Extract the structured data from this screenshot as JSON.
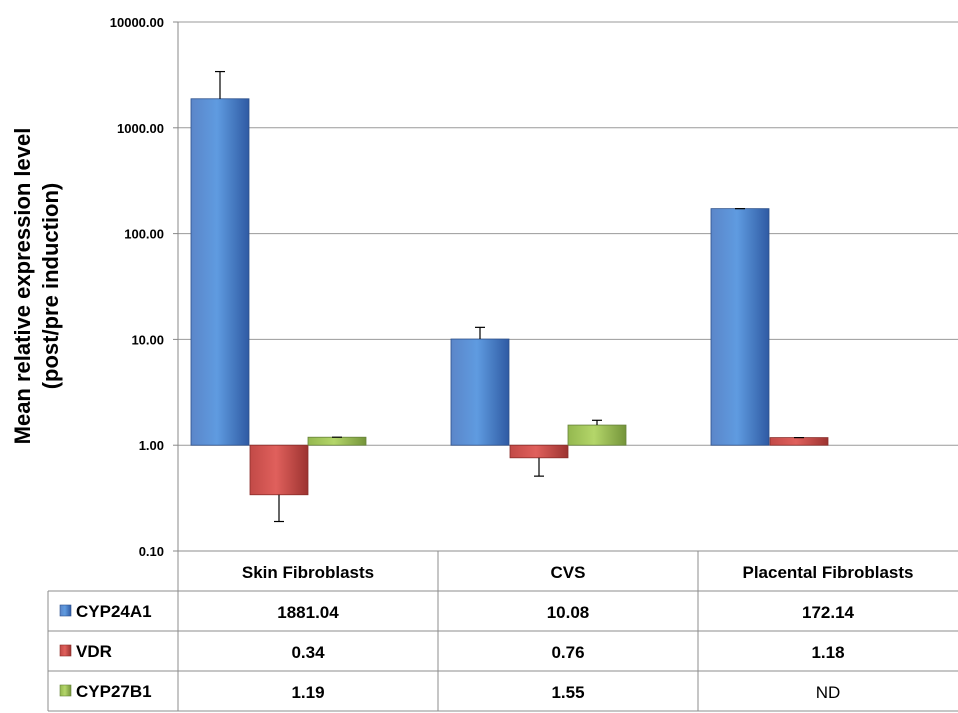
{
  "chart_data": {
    "type": "bar",
    "yscale": "log",
    "ylim": [
      0.1,
      10000
    ],
    "yticks": [
      "10000.00",
      "1000.00",
      "100.00",
      "10.00",
      "1.00",
      "0.10"
    ],
    "ylabel_line1": "Mean relative expression level",
    "ylabel_line2": "(post/pre induction)",
    "xlabel": "",
    "title": "",
    "grid": true,
    "legend": "data-table",
    "categories": [
      "Skin Fibroblasts",
      "CVS",
      "Placental Fibroblasts"
    ],
    "series": [
      {
        "name": "CYP24A1",
        "color": "#4472C4",
        "values": [
          1881.04,
          10.08,
          172.14
        ],
        "labels": [
          "1881.04",
          "10.08",
          "172.14"
        ],
        "error_upper": [
          3400,
          13,
          172.14
        ]
      },
      {
        "name": "VDR",
        "color": "#C0504D",
        "values": [
          0.34,
          0.76,
          1.18
        ],
        "labels": [
          "0.34",
          "0.76",
          "1.18"
        ],
        "error_lower": [
          0.19,
          0.51,
          1.18
        ]
      },
      {
        "name": "CYP27B1",
        "color": "#9BBB59",
        "values": [
          1.19,
          1.55,
          null
        ],
        "labels": [
          "1.19",
          "1.55",
          "ND"
        ],
        "error_upper": [
          1.19,
          1.72,
          null
        ]
      }
    ]
  }
}
